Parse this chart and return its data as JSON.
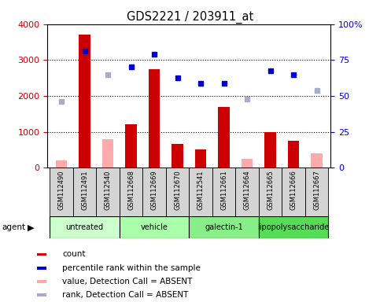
{
  "title": "GDS2221 / 203911_at",
  "samples": [
    "GSM112490",
    "GSM112491",
    "GSM112540",
    "GSM112668",
    "GSM112669",
    "GSM112670",
    "GSM112541",
    "GSM112661",
    "GSM112664",
    "GSM112665",
    "GSM112666",
    "GSM112667"
  ],
  "groups": [
    {
      "label": "untreated",
      "color": "#ccffcc",
      "start": 0,
      "end": 3
    },
    {
      "label": "vehicle",
      "color": "#aaffaa",
      "start": 3,
      "end": 6
    },
    {
      "label": "galectin-1",
      "color": "#88ee88",
      "start": 6,
      "end": 9
    },
    {
      "label": "lipopolysaccharide",
      "color": "#55dd55",
      "start": 9,
      "end": 12
    }
  ],
  "red_bars": {
    "indices": [
      1,
      3,
      4,
      5,
      6,
      7,
      9,
      10
    ],
    "values": [
      3700,
      1200,
      2750,
      650,
      500,
      1700,
      1000,
      750
    ]
  },
  "pink_bars": {
    "indices": [
      0,
      2,
      8,
      11
    ],
    "values": [
      200,
      800,
      250,
      400
    ]
  },
  "blue_squares": {
    "indices": [
      1,
      3,
      4,
      5,
      6,
      7,
      9,
      10
    ],
    "values": [
      3250,
      2800,
      3150,
      2500,
      2350,
      2350,
      2700,
      2600
    ]
  },
  "lightblue_squares": {
    "indices": [
      0,
      2,
      8,
      11
    ],
    "values": [
      1850,
      2600,
      1900,
      2150
    ]
  },
  "ylim_left": [
    0,
    4000
  ],
  "ylim_right": [
    0,
    100
  ],
  "yticks_left": [
    0,
    1000,
    2000,
    3000,
    4000
  ],
  "yticks_right": [
    0,
    25,
    50,
    75,
    100
  ],
  "ytick_labels_right": [
    "0",
    "25",
    "50",
    "75",
    "100%"
  ],
  "left_tick_color": "#cc0000",
  "right_tick_color": "#0000cc",
  "bar_width": 0.5,
  "legend_items": [
    {
      "color": "#cc0000",
      "marker": "s",
      "label": "count"
    },
    {
      "color": "#0000cc",
      "marker": "s",
      "label": "percentile rank within the sample"
    },
    {
      "color": "#ffaaaa",
      "marker": "s",
      "label": "value, Detection Call = ABSENT"
    },
    {
      "color": "#aaaacc",
      "marker": "s",
      "label": "rank, Detection Call = ABSENT"
    }
  ]
}
